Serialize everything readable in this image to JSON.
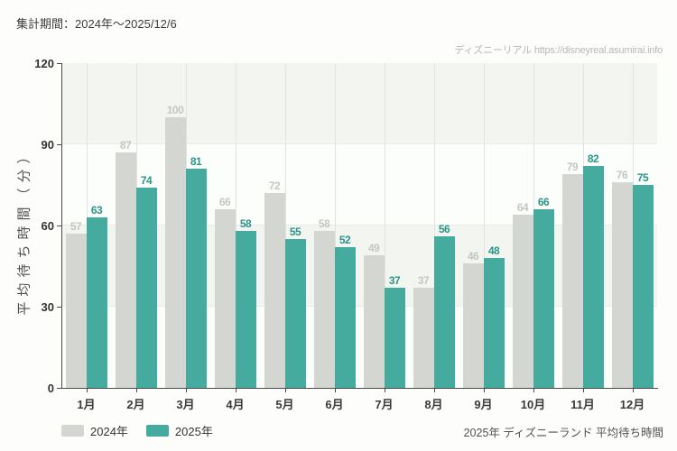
{
  "header": {
    "title": "集計期間：2024年～2025/12/6",
    "watermark": "ディズニーリアル https://disneyreal.asumirai.info"
  },
  "chart_data": {
    "type": "bar",
    "title": "2025年 ディズニーランド 平均待ち時間",
    "categories": [
      "1月",
      "2月",
      "3月",
      "4月",
      "5月",
      "6月",
      "7月",
      "8月",
      "9月",
      "10月",
      "11月",
      "12月"
    ],
    "series": [
      {
        "name": "2024年",
        "color": "#d4d6d2",
        "label_color": "#c5c7c3",
        "values": [
          57,
          87,
          100,
          66,
          72,
          58,
          49,
          37,
          46,
          64,
          79,
          76
        ]
      },
      {
        "name": "2025年",
        "color": "#45ab9f",
        "label_color": "#2d9488",
        "values": [
          63,
          74,
          81,
          58,
          55,
          52,
          37,
          56,
          48,
          66,
          82,
          75
        ]
      }
    ],
    "xlabel": "",
    "ylabel": "平均待ち時間（分）",
    "ylim": [
      0,
      120
    ],
    "yticks": [
      0,
      30,
      60,
      90,
      120
    ],
    "grid": true,
    "legend_position": "bottom-left",
    "band_colors": [
      "#fcfefb",
      "#f3f5f1"
    ]
  },
  "footer": {
    "caption": "2025年 ディズニーランド 平均待ち時間"
  }
}
